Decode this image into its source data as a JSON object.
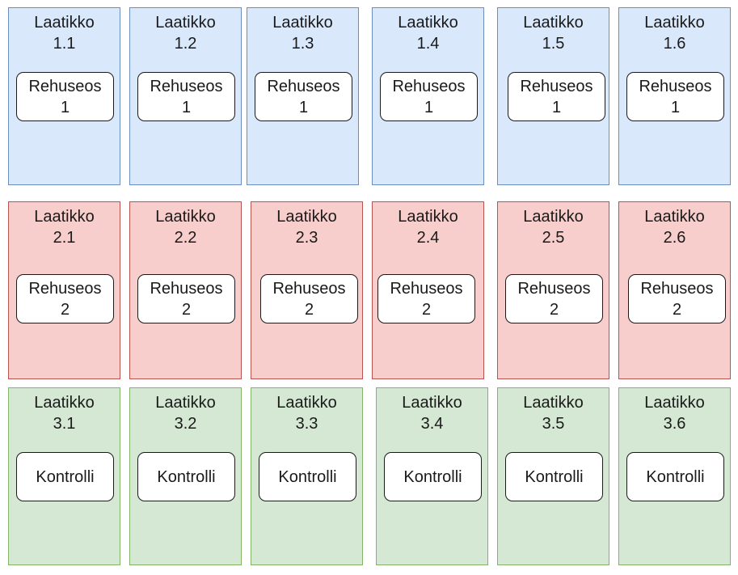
{
  "colors": {
    "row1": {
      "fill": "#dae8fc",
      "stroke": "#6c8ebf"
    },
    "row2": {
      "fill": "#f8cecc",
      "stroke": "#b85450"
    },
    "row3": {
      "fill": "#d5e8d4",
      "stroke": "#82b366"
    }
  },
  "rows": [
    {
      "colorKey": "row1",
      "plots": [
        {
          "label": "Laatikko",
          "number": "1.1",
          "treatment": [
            "Rehuseos",
            "1"
          ]
        },
        {
          "label": "Laatikko",
          "number": "1.2",
          "treatment": [
            "Rehuseos",
            "1"
          ]
        },
        {
          "label": "Laatikko",
          "number": "1.3",
          "treatment": [
            "Rehuseos",
            "1"
          ]
        },
        {
          "label": "Laatikko",
          "number": "1.4",
          "treatment": [
            "Rehuseos",
            "1"
          ]
        },
        {
          "label": "Laatikko",
          "number": "1.5",
          "treatment": [
            "Rehuseos",
            "1"
          ]
        },
        {
          "label": "Laatikko",
          "number": "1.6",
          "treatment": [
            "Rehuseos",
            "1"
          ]
        }
      ]
    },
    {
      "colorKey": "row2",
      "plots": [
        {
          "label": "Laatikko",
          "number": "2.1",
          "treatment": [
            "Rehuseos",
            "2"
          ]
        },
        {
          "label": "Laatikko",
          "number": "2.2",
          "treatment": [
            "Rehuseos",
            "2"
          ]
        },
        {
          "label": "Laatikko",
          "number": "2.3",
          "treatment": [
            "Rehuseos",
            "2"
          ]
        },
        {
          "label": "Laatikko",
          "number": "2.4",
          "treatment": [
            "Rehuseos",
            "2"
          ]
        },
        {
          "label": "Laatikko",
          "number": "2.5",
          "treatment": [
            "Rehuseos",
            "2"
          ]
        },
        {
          "label": "Laatikko",
          "number": "2.6",
          "treatment": [
            "Rehuseos",
            "2"
          ]
        }
      ]
    },
    {
      "colorKey": "row3",
      "plots": [
        {
          "label": "Laatikko",
          "number": "3.1",
          "treatment": [
            "Kontrolli"
          ]
        },
        {
          "label": "Laatikko",
          "number": "3.2",
          "treatment": [
            "Kontrolli"
          ]
        },
        {
          "label": "Laatikko",
          "number": "3.3",
          "treatment": [
            "Kontrolli"
          ]
        },
        {
          "label": "Laatikko",
          "number": "3.4",
          "treatment": [
            "Kontrolli"
          ]
        },
        {
          "label": "Laatikko",
          "number": "3.5",
          "treatment": [
            "Kontrolli"
          ]
        },
        {
          "label": "Laatikko",
          "number": "3.6",
          "treatment": [
            "Kontrolli"
          ]
        }
      ]
    }
  ]
}
